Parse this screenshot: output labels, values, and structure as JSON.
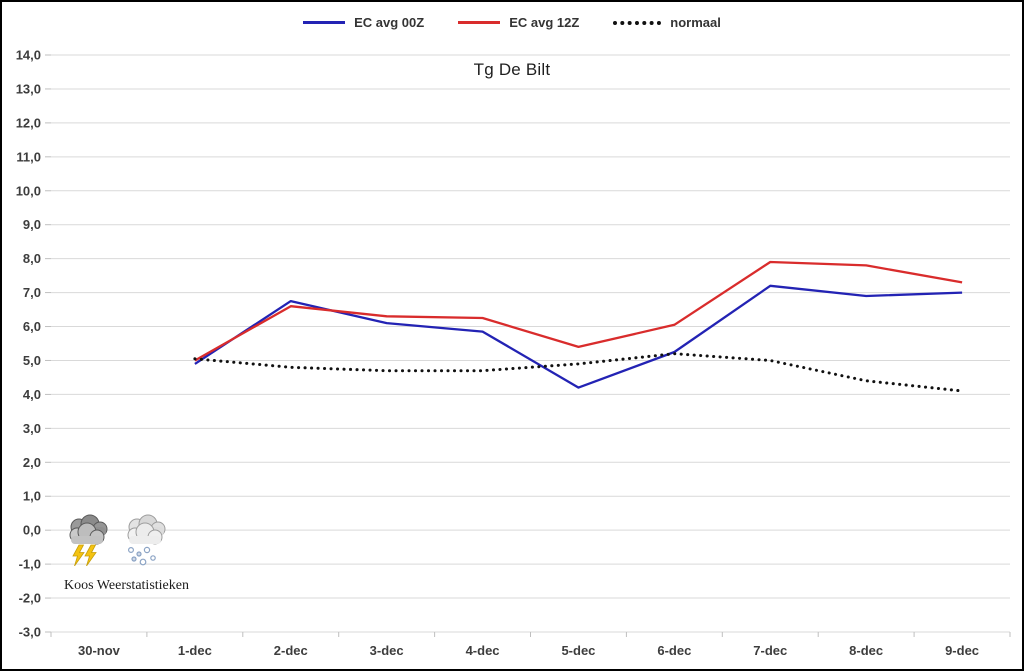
{
  "frame": {
    "background": "#ffffff",
    "border_color": "#000000"
  },
  "legend": {
    "items": [
      {
        "label": "EC avg 00Z",
        "color": "#2323b4",
        "style": "solid"
      },
      {
        "label": "EC avg 12Z",
        "color": "#d92c2c",
        "style": "solid"
      },
      {
        "label": "normaal",
        "color": "#111111",
        "style": "dotted"
      }
    ]
  },
  "watermark": {
    "label": "Koos Weerstatistieken",
    "icons": [
      "storm-cloud-lightning-icon",
      "snow-cloud-icon"
    ]
  },
  "chart_data": {
    "type": "line",
    "title": "Tg De Bilt",
    "categories": [
      "30-nov",
      "1-dec",
      "2-dec",
      "3-dec",
      "4-dec",
      "5-dec",
      "6-dec",
      "7-dec",
      "8-dec",
      "9-dec"
    ],
    "series": [
      {
        "name": "EC avg 00Z",
        "color": "#2323b4",
        "style": "solid",
        "values": [
          null,
          4.9,
          6.75,
          6.1,
          5.85,
          4.2,
          5.25,
          7.2,
          6.9,
          7.0
        ]
      },
      {
        "name": "EC avg 12Z",
        "color": "#d92c2c",
        "style": "solid",
        "values": [
          null,
          5.0,
          6.6,
          6.3,
          6.25,
          5.4,
          6.05,
          7.9,
          7.8,
          7.3
        ]
      },
      {
        "name": "normaal",
        "color": "#111111",
        "style": "dotted",
        "values": [
          null,
          5.05,
          4.8,
          4.7,
          4.7,
          4.9,
          5.2,
          5.0,
          4.4,
          4.1
        ]
      }
    ],
    "ylim": [
      -3.0,
      14.0
    ],
    "ytick_step": 1.0,
    "ytick_labels": [
      "14,0",
      "13,0",
      "12,0",
      "11,0",
      "10,0",
      "9,0",
      "8,0",
      "7,0",
      "6,0",
      "5,0",
      "4,0",
      "3,0",
      "2,0",
      "1,0",
      "0,0",
      "-1,0",
      "-2,0",
      "-3,0"
    ],
    "grid": true,
    "legend_position": "top-center",
    "gridline_color": "#d9d9d9",
    "tick_color": "#bfbfbf",
    "axis_text_color": "#3d3d3d"
  }
}
